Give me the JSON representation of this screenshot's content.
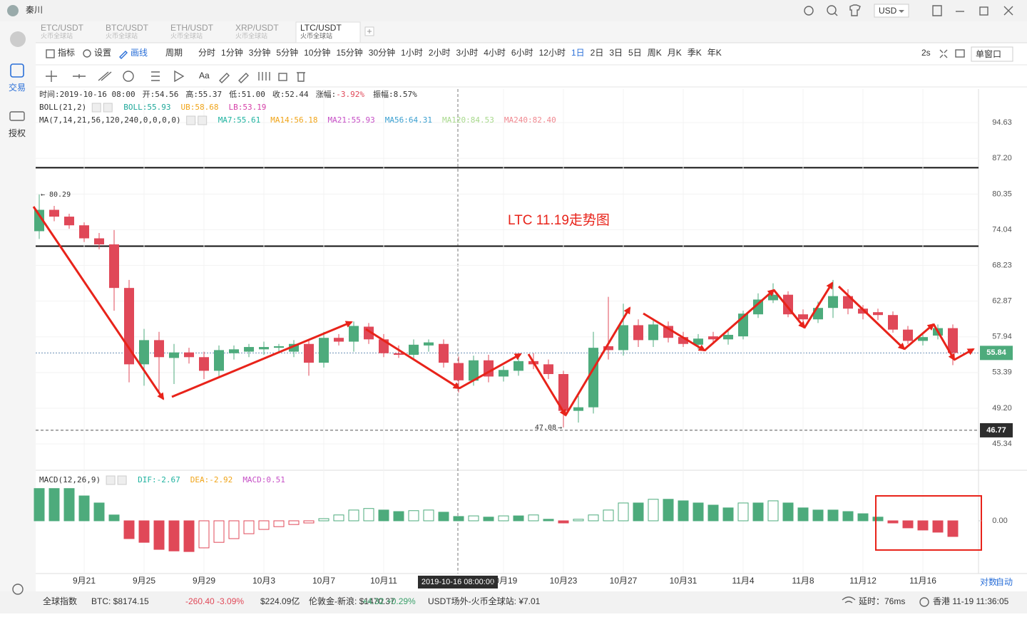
{
  "window": {
    "user": "秦川",
    "currency": "USD"
  },
  "tabs": [
    {
      "pair": "ETC/USDT",
      "exchange": "火币全球站"
    },
    {
      "pair": "BTC/USDT",
      "exchange": "火币全球站"
    },
    {
      "pair": "ETH/USDT",
      "exchange": "火币全球站"
    },
    {
      "pair": "XRP/USDT",
      "exchange": "火币全球站"
    },
    {
      "pair": "LTC/USDT",
      "exchange": "火币全球站"
    }
  ],
  "toolbar": {
    "indicator": "指标",
    "settings": "设置",
    "draw": "画线",
    "period": "周期",
    "intervals": [
      "分时",
      "1分钟",
      "3分钟",
      "5分钟",
      "10分钟",
      "15分钟",
      "30分钟",
      "1小时",
      "2小时",
      "3小时",
      "4小时",
      "6小时",
      "12小时",
      "1日",
      "2日",
      "3日",
      "5日",
      "周K",
      "月K",
      "季K",
      "年K"
    ],
    "active_interval": 13,
    "refresh": "2s",
    "window_mode": "单窗口",
    "text_tool": "Aa"
  },
  "sidebar": {
    "trade": "交易",
    "auth": "授权"
  },
  "info": {
    "items": [
      "时间:2019-10-16 08:00",
      "开:54.56",
      "高:55.37",
      "低:51.00",
      "收:52.44"
    ],
    "change_label": "涨幅:",
    "change": "-3.92%",
    "amplitude": "振幅:8.57%"
  },
  "chart_data": [
    {
      "type": "candlestick",
      "annotation": "LTC 11.19走势图",
      "crosshair_label": "2019-10-16 08:00:00",
      "categories": [
        null,
        null,
        null,
        "9月21",
        null,
        null,
        null,
        "9月25",
        null,
        null,
        null,
        "9月29",
        null,
        null,
        null,
        "10月3",
        null,
        null,
        null,
        "10月7",
        null,
        null,
        null,
        "10月11",
        null,
        null,
        null,
        null,
        null,
        null,
        null,
        "10月19",
        null,
        null,
        null,
        "10月23",
        null,
        null,
        null,
        "10月27",
        null,
        null,
        null,
        "10月31",
        null,
        null,
        null,
        "11月4",
        null,
        null,
        null,
        "11月8",
        null,
        null,
        null,
        "11月12",
        null,
        null,
        null,
        "11月16",
        null,
        null
      ],
      "open": [
        73.8,
        77.5,
        76.3,
        74.8,
        72.6,
        71.6,
        64.8,
        54.4,
        57.5,
        55.2,
        55.9,
        55.3,
        53.6,
        55.8,
        56.0,
        56.3,
        56.5,
        56.0,
        57.0,
        54.6,
        57.8,
        57.3,
        59.3,
        57.6,
        55.8,
        55.6,
        56.8,
        57.0,
        54.56,
        52.4,
        54.9,
        52.9,
        53.6,
        54.8,
        54.4,
        53.2,
        48.9,
        49.3,
        56.7,
        56.2,
        59.5,
        57.5,
        59.4,
        57.9,
        56.9,
        58.0,
        57.6,
        58.0,
        61.0,
        63.0,
        63.8,
        61.0,
        60.3,
        61.9,
        63.6,
        61.8,
        61.3,
        60.9,
        58.9,
        57.4,
        58.1,
        59.1
      ],
      "high": [
        80.29,
        78.2,
        76.8,
        75.3,
        73.5,
        74.0,
        66.0,
        59.0,
        58.6,
        57.0,
        56.5,
        56.0,
        56.8,
        56.8,
        57.0,
        57.3,
        57.0,
        57.5,
        57.6,
        58.6,
        58.3,
        60.0,
        59.8,
        58.3,
        56.8,
        57.6,
        57.6,
        57.6,
        55.37,
        55.5,
        55.6,
        54.2,
        55.5,
        55.8,
        55.0,
        53.6,
        50.6,
        58.6,
        63.5,
        62.5,
        60.3,
        60.2,
        60.0,
        58.6,
        58.3,
        58.6,
        59.0,
        61.5,
        64.0,
        65.5,
        64.3,
        61.7,
        62.8,
        66.0,
        64.6,
        62.3,
        61.8,
        61.4,
        59.4,
        58.4,
        59.6,
        59.6
      ],
      "low": [
        72.5,
        75.5,
        74.2,
        72.0,
        70.8,
        61.5,
        52.2,
        51.8,
        50.8,
        52.0,
        54.5,
        52.6,
        52.8,
        55.0,
        55.3,
        55.6,
        55.8,
        55.3,
        53.0,
        54.0,
        56.8,
        56.0,
        57.0,
        55.3,
        55.2,
        55.0,
        56.0,
        54.0,
        51,
        51.8,
        52.2,
        52.3,
        53.0,
        53.8,
        52.6,
        47.08,
        47.6,
        48.6,
        55.0,
        55.5,
        56.6,
        56.6,
        57.2,
        56.6,
        56.3,
        57.0,
        56.9,
        57.6,
        60.5,
        62.6,
        60.6,
        59.6,
        59.8,
        60.5,
        61.0,
        60.3,
        60.2,
        58.5,
        57.0,
        56.8,
        57.6,
        54.3
      ],
      "close": [
        77.5,
        76.3,
        74.8,
        72.6,
        71.6,
        64.8,
        54.4,
        57.5,
        55.3,
        55.9,
        55.3,
        53.6,
        56.2,
        56.3,
        56.6,
        56.6,
        56.7,
        57.0,
        54.6,
        57.8,
        57.3,
        59.4,
        57.6,
        55.8,
        55.6,
        56.9,
        57.2,
        54.6,
        52.44,
        54.9,
        52.9,
        53.7,
        54.8,
        54.4,
        53.2,
        48.9,
        49.3,
        56.5,
        56.2,
        59.5,
        57.5,
        59.6,
        57.8,
        57.0,
        57.7,
        57.6,
        58.2,
        61.1,
        63.1,
        63.8,
        61.0,
        60.3,
        61.9,
        63.6,
        61.8,
        61.1,
        60.9,
        58.9,
        57.4,
        57.9,
        59.1,
        55.84
      ],
      "up_color": "#4dab7c",
      "down_color": "#e04858",
      "log_scale": true,
      "grid": true,
      "ylim": [
        42.68,
        102.2
      ],
      "yticks": [
        94.63,
        {
          "value": 87.2,
          "label": "87.20"
        },
        80.35,
        74.04,
        68.23,
        62.87,
        57.94,
        53.39,
        {
          "value": 49.2,
          "label": "49.20"
        },
        45.34
      ],
      "last_price": 55.84,
      "price_line": 46.77,
      "hlines": [
        85.35,
        71.31
      ],
      "max_marker": 80.29,
      "min_marker": 47.08,
      "legends": [
        {
          "name": "BOLL(21,2)",
          "items": [
            {
              "text": "BOLL:55.93",
              "color": "#1fa89a"
            },
            {
              "text": "UB:58.68",
              "color": "#f0a418"
            },
            {
              "text": "LB:53.19",
              "color": "#d63fa8"
            }
          ]
        },
        {
          "name": "MA(7,14,21,56,120,240,0,0,0,0)",
          "items": [
            {
              "text": "MA7:55.61",
              "color": "#1fb3a0"
            },
            {
              "text": "MA14:56.18",
              "color": "#f0a418"
            },
            {
              "text": "MA21:55.93",
              "color": "#c64fc6"
            },
            {
              "text": "MA56:64.31",
              "color": "#3a9fd0"
            },
            {
              "text": "MA120:84.53",
              "color": "#a8d98c"
            },
            {
              "text": "MA240:82.40",
              "color": "#f08890"
            }
          ]
        }
      ]
    },
    {
      "type": "bar",
      "legend": {
        "name": "MACD(12,26,9)",
        "items": [
          {
            "text": "DIF:-2.67",
            "color": "#1fb3a0"
          },
          {
            "text": "DEA:-2.92",
            "color": "#f0a418"
          },
          {
            "text": "MACD:0.51",
            "color": "#c64fc6"
          }
        ]
      },
      "values": [
        1.05,
        1.05,
        1.05,
        0.81,
        0.58,
        0.19,
        -0.58,
        -0.7,
        -0.93,
        -0.98,
        -1.0,
        -0.88,
        -0.7,
        -0.58,
        -0.42,
        -0.28,
        -0.19,
        -0.12,
        -0.07,
        0.07,
        0.19,
        0.35,
        0.4,
        0.35,
        0.3,
        0.33,
        0.35,
        0.28,
        0.14,
        0.16,
        0.12,
        0.16,
        0.16,
        0.19,
        0.05,
        -0.07,
        0.05,
        0.19,
        0.35,
        0.58,
        0.58,
        0.7,
        0.7,
        0.65,
        0.58,
        0.51,
        0.42,
        0.58,
        0.58,
        0.65,
        0.58,
        0.42,
        0.35,
        0.35,
        0.3,
        0.23,
        0.12,
        -0.07,
        -0.23,
        -0.3,
        -0.37,
        -0.51
      ],
      "up_color": "#4dab7c",
      "down_color": "#e04858",
      "ylim": [
        -1.6,
        0.95
      ],
      "yticks": [
        {
          "value": 0,
          "label": "0.00"
        }
      ]
    }
  ],
  "axis_buttons": {
    "log": "对数",
    "auto": "自动"
  },
  "status": {
    "index": "全球指数",
    "btc": "BTC: $8174.15",
    "btc_change": "-260.40 -3.09%",
    "btc_volume": "$224.09亿",
    "gold": "伦敦金-新浪: $1470.37",
    "gold_change": "+4.32 +0.29%",
    "usdt": "USDT场外-火币全球站: ¥7.01",
    "latency": "延时：76ms",
    "clock": "香港 11-19 11:36:05"
  }
}
